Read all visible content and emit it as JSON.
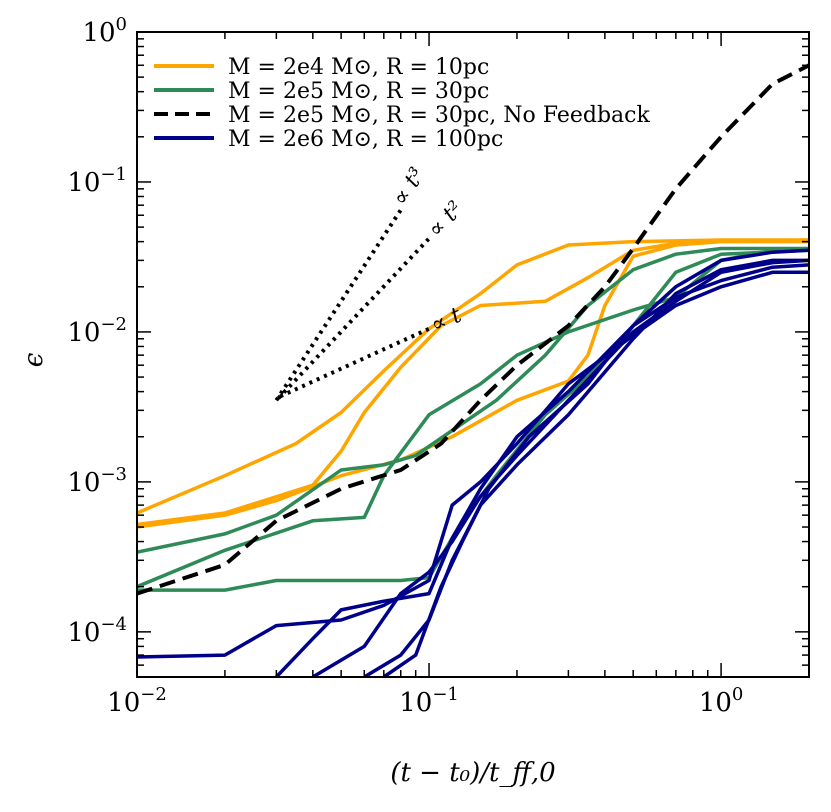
{
  "chart_data": {
    "type": "line",
    "title": "",
    "xlabel": "(t − t₀)/t_ff,0",
    "ylabel": "ϵ",
    "xscale": "log",
    "yscale": "log",
    "xlim": [
      0.01,
      2.0
    ],
    "ylim": [
      5e-05,
      1.0
    ],
    "x_ticks": [
      {
        "value": 0.01,
        "base": "10",
        "exp": "−2"
      },
      {
        "value": 0.1,
        "base": "10",
        "exp": "−1"
      },
      {
        "value": 1,
        "base": "10",
        "exp": "0"
      }
    ],
    "y_ticks": [
      {
        "value": 0.0001,
        "base": "10",
        "exp": "−4"
      },
      {
        "value": 0.001,
        "base": "10",
        "exp": "−3"
      },
      {
        "value": 0.01,
        "base": "10",
        "exp": "−2"
      },
      {
        "value": 0.1,
        "base": "10",
        "exp": "−1"
      },
      {
        "value": 1,
        "base": "10",
        "exp": "0"
      }
    ],
    "legend_position": "top-left",
    "legend": [
      {
        "label": "M = 2e4 M⊙, R = 10pc",
        "color": "#FFA500",
        "dash": "solid"
      },
      {
        "label": "M = 2e5 M⊙, R = 30pc",
        "color": "#2E8B57",
        "dash": "solid"
      },
      {
        "label": "M = 2e5 M⊙, R = 30pc, No Feedback",
        "color": "#000000",
        "dash": "dashed"
      },
      {
        "label": "M = 2e6 M⊙, R = 100pc",
        "color": "#00008B",
        "dash": "solid"
      }
    ],
    "series": [
      {
        "name": "M = 2e4 M⊙, R = 10pc (run 1)",
        "color": "#FFA500",
        "dash": "solid",
        "points": [
          [
            0.01,
            0.00062
          ],
          [
            0.02,
            0.0011
          ],
          [
            0.035,
            0.0018
          ],
          [
            0.05,
            0.0029
          ],
          [
            0.07,
            0.0055
          ],
          [
            0.1,
            0.0105
          ],
          [
            0.15,
            0.018
          ],
          [
            0.2,
            0.028
          ],
          [
            0.3,
            0.038
          ],
          [
            0.5,
            0.04
          ],
          [
            1.0,
            0.041
          ],
          [
            2.0,
            0.041
          ]
        ]
      },
      {
        "name": "M = 2e4 M⊙, R = 10pc (run 2)",
        "color": "#FFA500",
        "dash": "solid",
        "points": [
          [
            0.01,
            0.00052
          ],
          [
            0.02,
            0.00062
          ],
          [
            0.04,
            0.00095
          ],
          [
            0.05,
            0.0016
          ],
          [
            0.06,
            0.0029
          ],
          [
            0.08,
            0.0058
          ],
          [
            0.11,
            0.011
          ],
          [
            0.15,
            0.015
          ],
          [
            0.25,
            0.016
          ],
          [
            0.35,
            0.023
          ],
          [
            0.5,
            0.035
          ],
          [
            0.7,
            0.039
          ],
          [
            1.0,
            0.04
          ],
          [
            2.0,
            0.04
          ]
        ]
      },
      {
        "name": "M = 2e4 M⊙, R = 10pc (run 3)",
        "color": "#FFA500",
        "dash": "solid",
        "points": [
          [
            0.01,
            0.0005
          ],
          [
            0.02,
            0.0006
          ],
          [
            0.03,
            0.00075
          ],
          [
            0.05,
            0.0011
          ],
          [
            0.08,
            0.0014
          ],
          [
            0.12,
            0.002
          ],
          [
            0.2,
            0.0035
          ],
          [
            0.3,
            0.0047
          ],
          [
            0.35,
            0.007
          ],
          [
            0.4,
            0.015
          ],
          [
            0.5,
            0.032
          ],
          [
            0.7,
            0.038
          ],
          [
            1.0,
            0.04
          ],
          [
            2.0,
            0.041
          ]
        ]
      },
      {
        "name": "M = 2e5 M⊙, R = 30pc (run 1)",
        "color": "#2E8B57",
        "dash": "solid",
        "points": [
          [
            0.01,
            0.00034
          ],
          [
            0.02,
            0.00045
          ],
          [
            0.03,
            0.0006
          ],
          [
            0.05,
            0.0012
          ],
          [
            0.07,
            0.0013
          ],
          [
            0.09,
            0.0015
          ],
          [
            0.12,
            0.0022
          ],
          [
            0.17,
            0.0035
          ],
          [
            0.25,
            0.007
          ],
          [
            0.35,
            0.015
          ],
          [
            0.5,
            0.026
          ],
          [
            0.7,
            0.033
          ],
          [
            1.0,
            0.036
          ],
          [
            2.0,
            0.036
          ]
        ]
      },
      {
        "name": "M = 2e5 M⊙, R = 30pc (run 2)",
        "color": "#2E8B57",
        "dash": "solid",
        "points": [
          [
            0.01,
            0.0002
          ],
          [
            0.02,
            0.00035
          ],
          [
            0.04,
            0.00055
          ],
          [
            0.06,
            0.00058
          ],
          [
            0.07,
            0.0011
          ],
          [
            0.1,
            0.0028
          ],
          [
            0.15,
            0.0045
          ],
          [
            0.2,
            0.007
          ],
          [
            0.3,
            0.01
          ],
          [
            0.5,
            0.014
          ],
          [
            0.7,
            0.017
          ],
          [
            1.0,
            0.03
          ],
          [
            1.5,
            0.035
          ],
          [
            2.0,
            0.036
          ]
        ]
      },
      {
        "name": "M = 2e5 M⊙, R = 30pc (run 3)",
        "color": "#2E8B57",
        "dash": "solid",
        "points": [
          [
            0.01,
            0.00019
          ],
          [
            0.02,
            0.00019
          ],
          [
            0.03,
            0.00022
          ],
          [
            0.06,
            0.00022
          ],
          [
            0.08,
            0.00022
          ],
          [
            0.1,
            0.00023
          ],
          [
            0.13,
            0.00055
          ],
          [
            0.17,
            0.0011
          ],
          [
            0.25,
            0.0028
          ],
          [
            0.35,
            0.005
          ],
          [
            0.5,
            0.011
          ],
          [
            0.7,
            0.025
          ],
          [
            1.0,
            0.033
          ],
          [
            2.0,
            0.035
          ]
        ]
      },
      {
        "name": "M = 2e5 M⊙, R = 30pc, No Feedback",
        "color": "#000000",
        "dash": "dashed",
        "points": [
          [
            0.01,
            0.00018
          ],
          [
            0.02,
            0.00028
          ],
          [
            0.03,
            0.00055
          ],
          [
            0.05,
            0.0009
          ],
          [
            0.08,
            0.0012
          ],
          [
            0.11,
            0.0018
          ],
          [
            0.15,
            0.0035
          ],
          [
            0.2,
            0.006
          ],
          [
            0.3,
            0.011
          ],
          [
            0.4,
            0.02
          ],
          [
            0.5,
            0.036
          ],
          [
            0.7,
            0.09
          ],
          [
            1.0,
            0.2
          ],
          [
            1.5,
            0.45
          ],
          [
            2.0,
            0.6
          ]
        ]
      },
      {
        "name": "M = 2e6 M⊙, R = 100pc (run 1)",
        "color": "#00008B",
        "dash": "solid",
        "points": [
          [
            0.01,
            6.8e-05
          ],
          [
            0.02,
            7e-05
          ],
          [
            0.03,
            0.00011
          ],
          [
            0.05,
            0.00012
          ],
          [
            0.07,
            0.00015
          ],
          [
            0.1,
            0.00022
          ],
          [
            0.12,
            0.0007
          ],
          [
            0.15,
            0.001
          ],
          [
            0.2,
            0.0018
          ],
          [
            0.3,
            0.0045
          ],
          [
            0.5,
            0.0095
          ],
          [
            0.7,
            0.015
          ],
          [
            1.0,
            0.02
          ],
          [
            1.5,
            0.025
          ],
          [
            2.0,
            0.025
          ]
        ]
      },
      {
        "name": "M = 2e6 M⊙, R = 100pc (run 2)",
        "color": "#00008B",
        "dash": "solid",
        "points": [
          [
            0.03,
            5e-05
          ],
          [
            0.04,
            9e-05
          ],
          [
            0.05,
            0.00014
          ],
          [
            0.07,
            0.00016
          ],
          [
            0.1,
            0.00018
          ],
          [
            0.12,
            0.00042
          ],
          [
            0.15,
            0.0009
          ],
          [
            0.2,
            0.002
          ],
          [
            0.3,
            0.004
          ],
          [
            0.5,
            0.011
          ],
          [
            0.7,
            0.017
          ],
          [
            1.0,
            0.022
          ],
          [
            1.5,
            0.027
          ],
          [
            2.0,
            0.028
          ]
        ]
      },
      {
        "name": "M = 2e6 M⊙, R = 100pc (run 3)",
        "color": "#00008B",
        "dash": "solid",
        "points": [
          [
            0.04,
            5e-05
          ],
          [
            0.06,
            8e-05
          ],
          [
            0.08,
            0.00018
          ],
          [
            0.1,
            0.00025
          ],
          [
            0.12,
            0.0004
          ],
          [
            0.15,
            0.0008
          ],
          [
            0.2,
            0.0015
          ],
          [
            0.3,
            0.0035
          ],
          [
            0.5,
            0.01
          ],
          [
            0.7,
            0.016
          ],
          [
            1.0,
            0.025
          ],
          [
            1.5,
            0.029
          ],
          [
            2.0,
            0.03
          ]
        ]
      },
      {
        "name": "M = 2e6 M⊙, R = 100pc (run 4)",
        "color": "#00008B",
        "dash": "solid",
        "points": [
          [
            0.06,
            5e-05
          ],
          [
            0.08,
            7e-05
          ],
          [
            0.1,
            0.00012
          ],
          [
            0.12,
            0.0003
          ],
          [
            0.15,
            0.0007
          ],
          [
            0.2,
            0.0013
          ],
          [
            0.3,
            0.0028
          ],
          [
            0.5,
            0.009
          ],
          [
            0.7,
            0.018
          ],
          [
            1.0,
            0.026
          ],
          [
            1.5,
            0.03
          ],
          [
            2.0,
            0.03
          ]
        ]
      },
      {
        "name": "M = 2e6 M⊙, R = 100pc (run 5)",
        "color": "#00008B",
        "dash": "solid",
        "points": [
          [
            0.07,
            5e-05
          ],
          [
            0.09,
            7e-05
          ],
          [
            0.11,
            0.0002
          ],
          [
            0.13,
            0.0004
          ],
          [
            0.16,
            0.0009
          ],
          [
            0.22,
            0.002
          ],
          [
            0.35,
            0.0045
          ],
          [
            0.5,
            0.011
          ],
          [
            0.7,
            0.02
          ],
          [
            1.0,
            0.03
          ],
          [
            1.5,
            0.034
          ],
          [
            2.0,
            0.035
          ]
        ]
      }
    ],
    "reference_slopes": [
      {
        "label": "∝ t³",
        "points": [
          [
            0.03,
            0.0035
          ],
          [
            0.08,
            0.065
          ]
        ]
      },
      {
        "label": "∝ t²",
        "points": [
          [
            0.03,
            0.0035
          ],
          [
            0.1,
            0.042
          ]
        ]
      },
      {
        "label": "∝ t",
        "points": [
          [
            0.03,
            0.0035
          ],
          [
            0.1,
            0.0105
          ]
        ]
      }
    ]
  }
}
